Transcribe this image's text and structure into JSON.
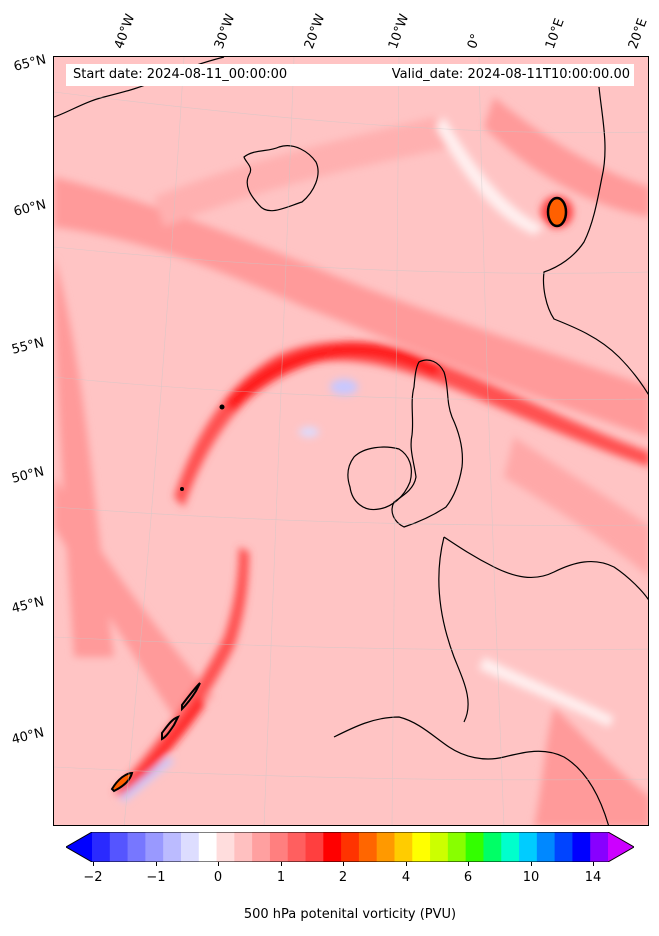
{
  "header": {
    "start_date": "Start date: 2024-08-11_00:00:00",
    "valid_date": "Valid_date: 2024-08-11T10:00:00.00"
  },
  "longitude_labels": [
    "40°W",
    "30°W",
    "20°W",
    "10°W",
    "0°",
    "10°E",
    "20°E"
  ],
  "latitude_labels": [
    "65°N",
    "60°N",
    "55°N",
    "50°N",
    "45°N",
    "40°N"
  ],
  "colorbar": {
    "label": "500 hPa potenital vorticity (PVU)",
    "ticks": [
      "−2",
      "−1",
      "0",
      "1",
      "2",
      "4",
      "6",
      "10",
      "14"
    ],
    "colors": [
      "#0000ff",
      "#2a2aff",
      "#5555ff",
      "#7777ff",
      "#9999ff",
      "#bbbbff",
      "#ddddff",
      "#ffffff",
      "#ffdddd",
      "#ffc0c0",
      "#ffa0a0",
      "#ff7f7f",
      "#ff5f5f",
      "#ff3f3f",
      "#ff0000",
      "#ff3300",
      "#ff6600",
      "#ff9900",
      "#ffcc00",
      "#ffff00",
      "#ccff00",
      "#88ff00",
      "#33ff00",
      "#00ff66",
      "#00ffcc",
      "#00ccff",
      "#0088ff",
      "#0044ff",
      "#0000ff",
      "#8800ff",
      "#cc00ff"
    ]
  },
  "colors": {
    "background_pv": "#ffb3b3",
    "jet_core": "#ff2020",
    "high_pv": "#ff6020",
    "low_pv": "#c8c8ff",
    "coastline": "#000000"
  }
}
